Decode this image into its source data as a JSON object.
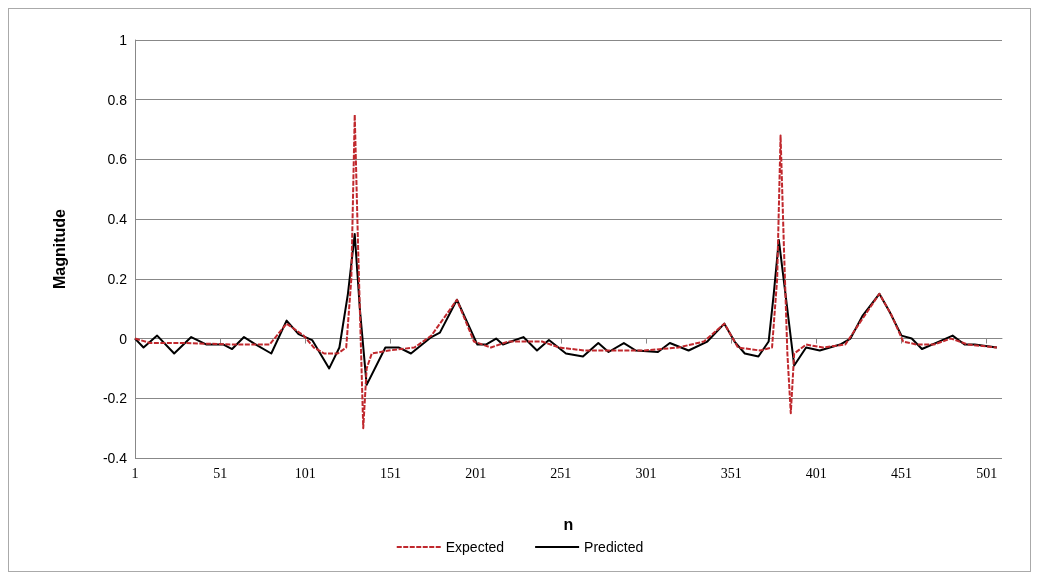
{
  "chart_data": {
    "type": "line",
    "xlabel": "n",
    "ylabel": "Magnitude",
    "xlim": [
      1,
      510
    ],
    "xticks": [
      1,
      51,
      101,
      151,
      201,
      251,
      301,
      351,
      401,
      451,
      501
    ],
    "ylim": [
      -0.4,
      1
    ],
    "yticks": [
      -0.4,
      -0.2,
      0,
      0.2,
      0.4,
      0.6,
      0.8,
      1
    ],
    "grid": "y",
    "legend": "bottom",
    "marker": "none",
    "series": [
      {
        "name": "Expected",
        "color": "#c0282d",
        "line_style": "dashed",
        "x": [
          1,
          10,
          30,
          60,
          80,
          90,
          100,
          106,
          112,
          120,
          125,
          128,
          130,
          132,
          134,
          135,
          137,
          140,
          150,
          165,
          175,
          190,
          200,
          210,
          220,
          230,
          240,
          250,
          265,
          280,
          300,
          320,
          335,
          347,
          355,
          368,
          375,
          378,
          380,
          382,
          384,
          386,
          388,
          395,
          405,
          418,
          425,
          438,
          445,
          452,
          460,
          470,
          480,
          490,
          507
        ],
        "values": [
          0,
          -0.015,
          -0.015,
          -0.02,
          -0.02,
          0.05,
          0.01,
          -0.03,
          -0.05,
          -0.05,
          -0.03,
          0.2,
          0.75,
          0.3,
          -0.1,
          -0.3,
          -0.1,
          -0.05,
          -0.04,
          -0.03,
          0.01,
          0.13,
          -0.01,
          -0.03,
          -0.01,
          -0.01,
          -0.01,
          -0.03,
          -0.04,
          -0.04,
          -0.04,
          -0.03,
          -0.01,
          0.05,
          -0.03,
          -0.04,
          -0.03,
          0.2,
          0.68,
          0.3,
          -0.05,
          -0.25,
          -0.05,
          -0.02,
          -0.03,
          -0.02,
          0.04,
          0.15,
          0.08,
          -0.01,
          -0.02,
          -0.02,
          0,
          -0.02,
          -0.03
        ]
      },
      {
        "name": "Predicted",
        "color": "#000000",
        "line_style": "solid",
        "x": [
          1,
          6,
          14,
          24,
          34,
          43,
          53,
          58,
          65,
          72,
          81,
          90,
          97,
          105,
          115,
          121,
          126,
          130,
          133,
          137,
          148,
          156,
          163,
          175,
          180,
          190,
          202,
          207,
          213,
          217,
          229,
          237,
          244,
          254,
          264,
          273,
          279,
          288,
          295,
          308,
          315,
          326,
          337,
          347,
          353,
          359,
          367,
          373,
          376,
          379,
          385,
          388,
          395,
          403,
          415,
          421,
          428,
          438,
          444,
          451,
          457,
          463,
          473,
          481,
          488,
          494,
          507
        ],
        "values": [
          0,
          -0.03,
          0.01,
          -0.05,
          0.005,
          -0.02,
          -0.02,
          -0.035,
          0.005,
          -0.02,
          -0.05,
          0.06,
          0.015,
          -0.005,
          -0.1,
          -0.03,
          0.15,
          0.35,
          0.1,
          -0.155,
          -0.03,
          -0.03,
          -0.05,
          0.005,
          0.02,
          0.13,
          -0.02,
          -0.02,
          0,
          -0.02,
          0.005,
          -0.04,
          -0.005,
          -0.05,
          -0.06,
          -0.015,
          -0.045,
          -0.015,
          -0.04,
          -0.045,
          -0.015,
          -0.04,
          -0.01,
          0.05,
          -0.01,
          -0.05,
          -0.06,
          -0.01,
          0.15,
          0.33,
          0.05,
          -0.09,
          -0.03,
          -0.04,
          -0.02,
          0,
          0.075,
          0.15,
          0.09,
          0.01,
          0,
          -0.035,
          -0.01,
          0.01,
          -0.02,
          -0.02,
          -0.03
        ]
      }
    ]
  }
}
